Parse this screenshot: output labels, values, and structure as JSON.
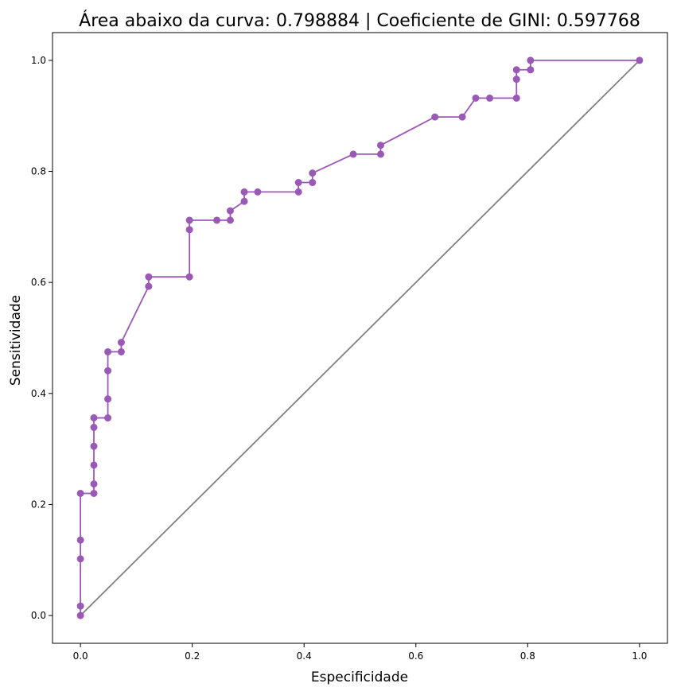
{
  "chart_data": {
    "type": "line",
    "title": "Área abaixo da curva: 0.798884 | Coeficiente de GINI: 0.597768",
    "xlabel": "Especificidade",
    "ylabel": "Sensitividade",
    "xlim": [
      -0.05,
      1.05
    ],
    "ylim": [
      -0.05,
      1.05
    ],
    "xticks": [
      "0.0",
      "0.2",
      "0.4",
      "0.6",
      "0.8",
      "1.0"
    ],
    "yticks": [
      "0.0",
      "0.2",
      "0.4",
      "0.6",
      "0.8",
      "1.0"
    ],
    "grid": false,
    "series": [
      {
        "color": "#9b59b6",
        "marker": "circle",
        "x": [
          0.0,
          0.0,
          0.0,
          0.0,
          0.0,
          0.024,
          0.024,
          0.024,
          0.024,
          0.024,
          0.024,
          0.049,
          0.049,
          0.049,
          0.049,
          0.073,
          0.073,
          0.122,
          0.122,
          0.195,
          0.195,
          0.195,
          0.244,
          0.268,
          0.268,
          0.293,
          0.293,
          0.317,
          0.39,
          0.39,
          0.415,
          0.415,
          0.488,
          0.537,
          0.537,
          0.634,
          0.683,
          0.707,
          0.732,
          0.78,
          0.78,
          0.78,
          0.805,
          0.805,
          1.0
        ],
        "y": [
          0.0,
          0.017,
          0.102,
          0.136,
          0.22,
          0.22,
          0.237,
          0.271,
          0.305,
          0.339,
          0.356,
          0.356,
          0.39,
          0.441,
          0.475,
          0.475,
          0.492,
          0.593,
          0.61,
          0.61,
          0.695,
          0.712,
          0.712,
          0.712,
          0.729,
          0.746,
          0.763,
          0.763,
          0.763,
          0.78,
          0.78,
          0.797,
          0.831,
          0.831,
          0.847,
          0.898,
          0.898,
          0.932,
          0.932,
          0.932,
          0.966,
          0.983,
          0.983,
          1.0,
          1.0
        ]
      },
      {
        "color": "#808080",
        "marker": "none",
        "x": [
          0.0,
          1.0
        ],
        "y": [
          0.0,
          1.0
        ]
      }
    ]
  }
}
